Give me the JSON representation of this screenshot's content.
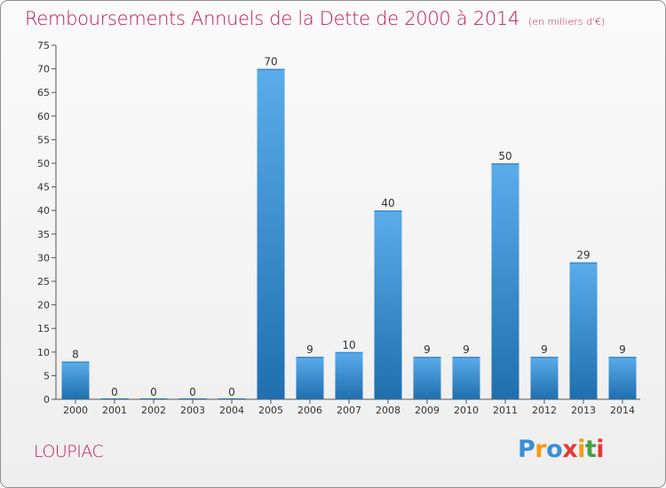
{
  "header": {
    "title": "Remboursements Annuels de la Dette de 2000 à 2014",
    "subtitle": "(en milliers d'€)"
  },
  "footer": {
    "commune": "LOUPIAC",
    "logo": [
      "P",
      "r",
      "o",
      "x",
      "i",
      "t",
      "i"
    ]
  },
  "colors": {
    "title": "#c2185b",
    "bar_top": "#5aaceb",
    "bar_bottom": "#1f6fae",
    "logo": [
      "#3a8fd6",
      "#f39c12",
      "#3a8fd6",
      "#e53935",
      "#f39c12",
      "#43a047",
      "#e53935"
    ]
  },
  "chart_data": {
    "type": "bar",
    "categories": [
      "2000",
      "2001",
      "2002",
      "2003",
      "2004",
      "2005",
      "2006",
      "2007",
      "2008",
      "2009",
      "2010",
      "2011",
      "2012",
      "2013",
      "2014"
    ],
    "values": [
      8,
      0,
      0,
      0,
      0,
      70,
      9,
      10,
      40,
      9,
      9,
      50,
      9,
      29,
      9
    ],
    "yticks": [
      0,
      5,
      10,
      15,
      20,
      25,
      30,
      35,
      40,
      45,
      50,
      55,
      60,
      65,
      70,
      75
    ],
    "ylim": [
      0,
      75
    ],
    "grid": false
  }
}
